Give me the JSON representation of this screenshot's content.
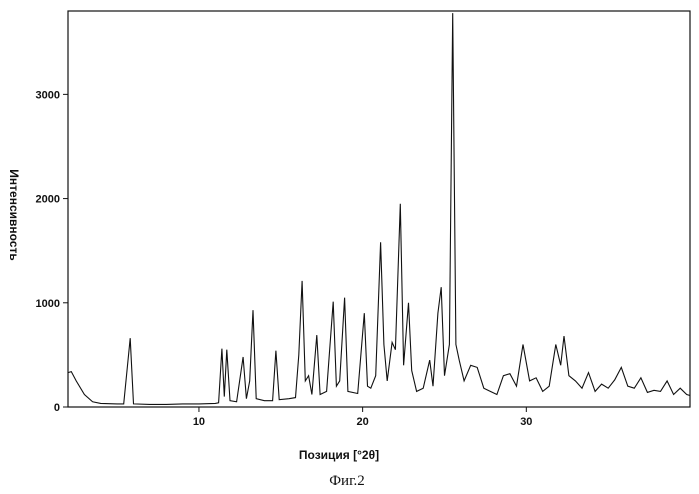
{
  "chart_data": {
    "type": "line",
    "xlabel": "Позиция [°2θ]",
    "ylabel": "Интенсивность",
    "caption": "Фиг.2",
    "xlim": [
      2,
      40
    ],
    "ylim": [
      0,
      3800
    ],
    "xticks": [
      10,
      20,
      30
    ],
    "yticks": [
      0,
      1000,
      2000,
      3000
    ],
    "grid": false,
    "line_color": "#111111",
    "series": [
      {
        "values_xy": [
          [
            2.0,
            330
          ],
          [
            2.2,
            340
          ],
          [
            2.5,
            250
          ],
          [
            3.0,
            120
          ],
          [
            3.5,
            50
          ],
          [
            4.0,
            35
          ],
          [
            5.0,
            30
          ],
          [
            5.4,
            30
          ],
          [
            5.8,
            660
          ],
          [
            6.0,
            30
          ],
          [
            7.0,
            25
          ],
          [
            8.0,
            25
          ],
          [
            9.0,
            30
          ],
          [
            10.0,
            30
          ],
          [
            11.0,
            35
          ],
          [
            11.2,
            40
          ],
          [
            11.4,
            560
          ],
          [
            11.55,
            100
          ],
          [
            11.7,
            550
          ],
          [
            11.9,
            60
          ],
          [
            12.3,
            50
          ],
          [
            12.7,
            480
          ],
          [
            12.9,
            80
          ],
          [
            13.1,
            250
          ],
          [
            13.3,
            930
          ],
          [
            13.5,
            80
          ],
          [
            14.0,
            60
          ],
          [
            14.5,
            60
          ],
          [
            14.7,
            540
          ],
          [
            14.9,
            70
          ],
          [
            15.5,
            80
          ],
          [
            15.9,
            90
          ],
          [
            16.1,
            500
          ],
          [
            16.3,
            1210
          ],
          [
            16.5,
            250
          ],
          [
            16.7,
            300
          ],
          [
            16.9,
            120
          ],
          [
            17.2,
            690
          ],
          [
            17.4,
            120
          ],
          [
            17.8,
            150
          ],
          [
            18.2,
            1010
          ],
          [
            18.4,
            200
          ],
          [
            18.6,
            250
          ],
          [
            18.9,
            1050
          ],
          [
            19.1,
            150
          ],
          [
            19.7,
            130
          ],
          [
            20.1,
            900
          ],
          [
            20.3,
            200
          ],
          [
            20.5,
            180
          ],
          [
            20.8,
            300
          ],
          [
            21.1,
            1580
          ],
          [
            21.3,
            600
          ],
          [
            21.5,
            250
          ],
          [
            21.8,
            620
          ],
          [
            22.0,
            550
          ],
          [
            22.3,
            1950
          ],
          [
            22.5,
            400
          ],
          [
            22.8,
            1000
          ],
          [
            23.0,
            350
          ],
          [
            23.3,
            150
          ],
          [
            23.7,
            180
          ],
          [
            24.1,
            450
          ],
          [
            24.3,
            200
          ],
          [
            24.6,
            900
          ],
          [
            24.8,
            1150
          ],
          [
            25.0,
            300
          ],
          [
            25.3,
            600
          ],
          [
            25.5,
            3780
          ],
          [
            25.7,
            600
          ],
          [
            25.9,
            450
          ],
          [
            26.2,
            250
          ],
          [
            26.6,
            400
          ],
          [
            27.0,
            380
          ],
          [
            27.4,
            180
          ],
          [
            27.8,
            150
          ],
          [
            28.2,
            120
          ],
          [
            28.6,
            300
          ],
          [
            29.0,
            320
          ],
          [
            29.4,
            200
          ],
          [
            29.8,
            600
          ],
          [
            30.2,
            250
          ],
          [
            30.6,
            280
          ],
          [
            31.0,
            150
          ],
          [
            31.4,
            200
          ],
          [
            31.8,
            600
          ],
          [
            32.1,
            400
          ],
          [
            32.3,
            680
          ],
          [
            32.6,
            300
          ],
          [
            33.0,
            250
          ],
          [
            33.4,
            180
          ],
          [
            33.8,
            330
          ],
          [
            34.2,
            150
          ],
          [
            34.6,
            220
          ],
          [
            35.0,
            180
          ],
          [
            35.4,
            260
          ],
          [
            35.8,
            380
          ],
          [
            36.2,
            200
          ],
          [
            36.6,
            180
          ],
          [
            37.0,
            280
          ],
          [
            37.4,
            140
          ],
          [
            37.8,
            160
          ],
          [
            38.2,
            150
          ],
          [
            38.6,
            250
          ],
          [
            39.0,
            120
          ],
          [
            39.4,
            180
          ],
          [
            39.8,
            120
          ],
          [
            40.0,
            110
          ]
        ]
      }
    ]
  }
}
